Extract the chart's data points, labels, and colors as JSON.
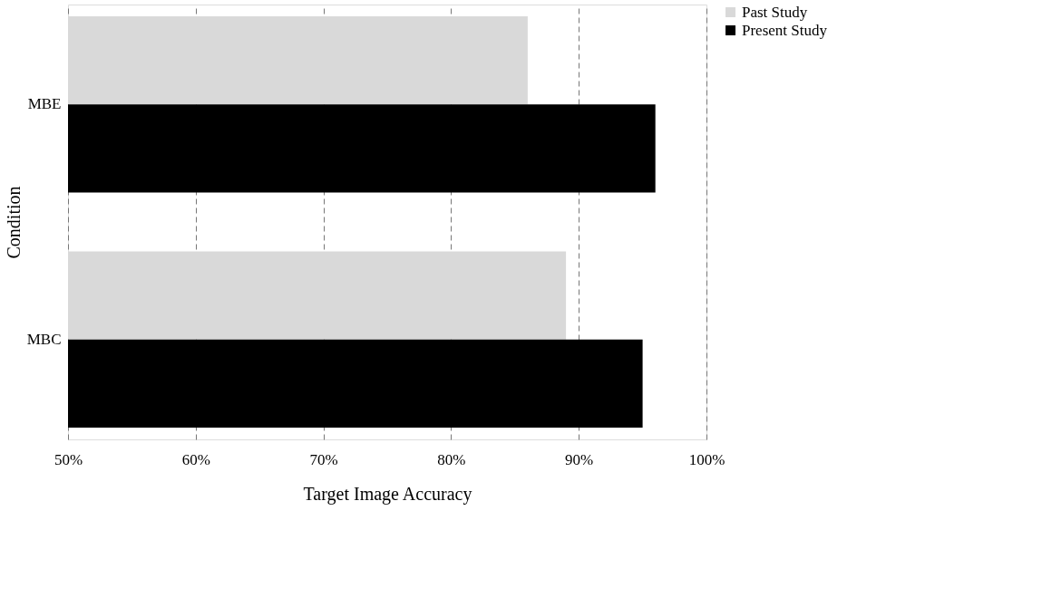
{
  "chart_data": {
    "type": "bar",
    "orientation": "horizontal",
    "xlabel": "Target Image Accuracy",
    "ylabel": "Condition",
    "categories": [
      "MBE",
      "MBC"
    ],
    "series": [
      {
        "name": "Past Study",
        "color": "#d9d9d9",
        "values": [
          86,
          89
        ]
      },
      {
        "name": "Present Study",
        "color": "#000000",
        "values": [
          96,
          95
        ]
      }
    ],
    "xlim": [
      50,
      100
    ],
    "xticks": [
      {
        "value": 50,
        "label": "50%"
      },
      {
        "value": 60,
        "label": "60%"
      },
      {
        "value": 70,
        "label": "70%"
      },
      {
        "value": 80,
        "label": "80%"
      },
      {
        "value": 90,
        "label": "90%"
      },
      {
        "value": 100,
        "label": "100%"
      }
    ],
    "grid": "x",
    "legend": "right"
  }
}
